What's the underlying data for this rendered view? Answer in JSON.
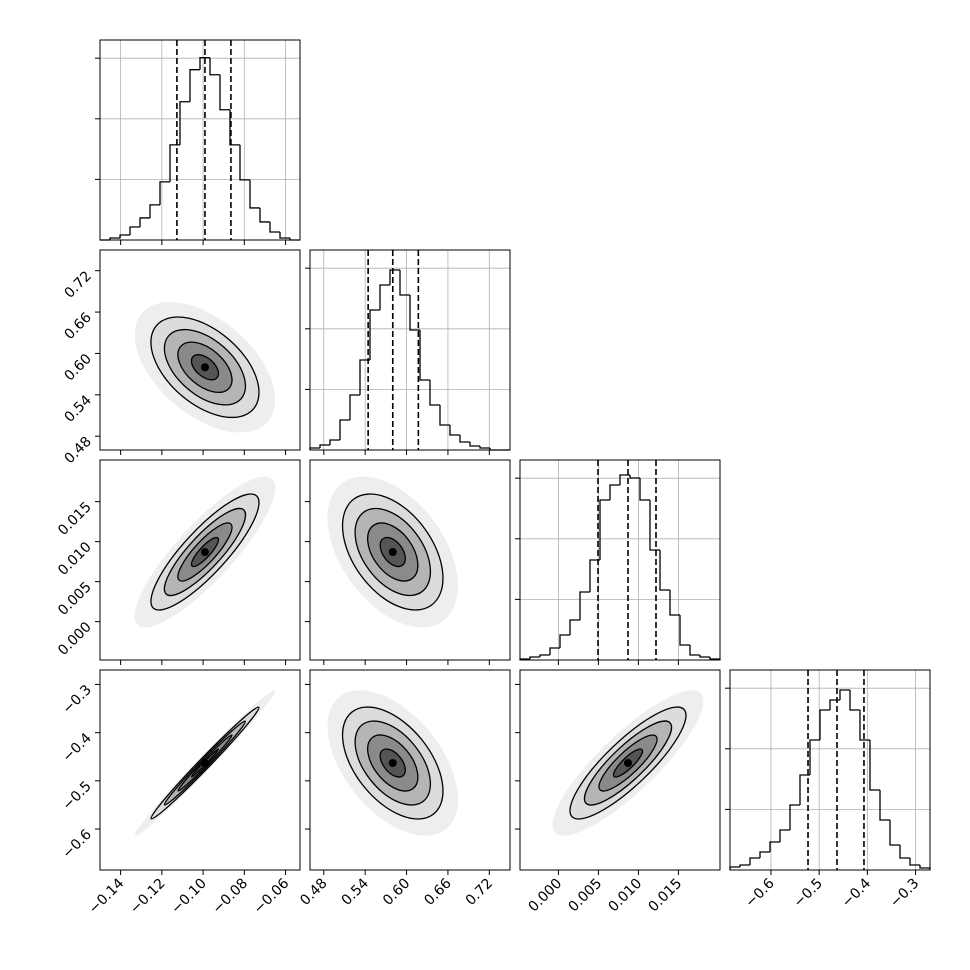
{
  "chart_data": [
    {
      "type": "histogram",
      "xlim": [
        -0.15,
        -0.053
      ],
      "xticks": [
        -0.14,
        -0.12,
        -0.1,
        -0.08,
        -0.06
      ],
      "ylim": [
        0,
        3300
      ],
      "yticks": [
        1000,
        2000,
        3000
      ],
      "grid": true,
      "bins": [
        -0.15,
        -0.14515,
        -0.1403,
        -0.13545,
        -0.1306,
        -0.12575,
        -0.1209,
        -0.11605,
        -0.1112,
        -0.10635,
        -0.1015,
        -0.09665,
        -0.0918,
        -0.08695,
        -0.0821,
        -0.07725,
        -0.0724,
        -0.06755,
        -0.0627,
        -0.05785,
        -0.053
      ],
      "values": [
        0,
        33,
        83,
        215,
        364,
        579,
        959,
        1570,
        2281,
        2810,
        3008,
        2727,
        2149,
        1570,
        992,
        529,
        298,
        132,
        33,
        0
      ],
      "vlines": [
        -0.1127,
        -0.0991,
        -0.0865
      ]
    },
    {
      "type": "contour",
      "xlim": [
        -0.15,
        -0.053
      ],
      "xticks": [
        -0.14,
        -0.12,
        -0.1,
        -0.08,
        -0.06
      ],
      "ylim": [
        0.46,
        0.75
      ],
      "yticks": [
        {
          "value": 0.48,
          "label": "0.48"
        },
        {
          "value": 0.54,
          "label": "0.54"
        },
        {
          "value": 0.6,
          "label": "0.60"
        },
        {
          "value": 0.66,
          "label": "0.66"
        },
        {
          "value": 0.72,
          "label": "0.72"
        }
      ],
      "grid": false,
      "correlation": -0.5
    },
    {
      "type": "histogram",
      "xlim": [
        0.46,
        0.75
      ],
      "xticks": [
        0.48,
        0.54,
        0.6,
        0.66,
        0.72
      ],
      "ylim": [
        0,
        3300
      ],
      "yticks": [
        1000,
        2000,
        3000
      ],
      "grid": true,
      "bins": [
        0.46,
        0.4745,
        0.489,
        0.5035,
        0.518,
        0.5325,
        0.547,
        0.5615,
        0.576,
        0.5905,
        0.605,
        0.6195,
        0.634,
        0.6485,
        0.663,
        0.6775,
        0.692,
        0.7065,
        0.721,
        0.7355,
        0.75
      ],
      "values": [
        33,
        83,
        165,
        495,
        908,
        1485,
        2310,
        2723,
        2970,
        2558,
        1980,
        1155,
        743,
        413,
        248,
        132,
        66,
        33,
        0,
        0
      ],
      "vlines": [
        0.5443,
        0.58,
        0.6171
      ]
    },
    {
      "type": "contour",
      "xlim": [
        -0.15,
        -0.053
      ],
      "xticks": [
        -0.14,
        -0.12,
        -0.1,
        -0.08,
        -0.06
      ],
      "ylim": [
        -0.0048,
        0.0202
      ],
      "yticks": [
        {
          "value": 0,
          "label": "0.000"
        },
        {
          "value": 0.005,
          "label": "0.005"
        },
        {
          "value": 0.01,
          "label": "0.010"
        },
        {
          "value": 0.015,
          "label": "0.015"
        }
      ],
      "grid": false,
      "correlation": 0.85
    },
    {
      "type": "contour",
      "xlim": [
        0.46,
        0.75
      ],
      "xticks": [
        0.48,
        0.54,
        0.6,
        0.66,
        0.72
      ],
      "ylim": [
        -0.0048,
        0.0202
      ],
      "yticks": [
        0,
        0.005,
        0.01,
        0.015
      ],
      "grid": false,
      "correlation": -0.45
    },
    {
      "type": "histogram",
      "xlim": [
        -0.0048,
        0.0202
      ],
      "xticks": [
        0,
        0.005,
        0.01,
        0.015
      ],
      "ylim": [
        0,
        3300
      ],
      "yticks": [
        1000,
        2000,
        3000
      ],
      "grid": true,
      "bins": [
        -0.0048,
        -0.00355,
        -0.0023,
        -0.00105,
        0.0002,
        0.00145,
        0.0027,
        0.00395,
        0.0052,
        0.00645,
        0.0077,
        0.00895,
        0.0102,
        0.01145,
        0.0127,
        0.01395,
        0.0152,
        0.01645,
        0.0177,
        0.01895,
        0.0202
      ],
      "values": [
        17,
        50,
        83,
        198,
        413,
        660,
        1122,
        1650,
        2640,
        2888,
        3053,
        3003,
        2640,
        1815,
        1155,
        743,
        248,
        83,
        50,
        17
      ],
      "vlines": [
        0.00495,
        0.0087,
        0.0122
      ]
    },
    {
      "type": "contour",
      "xlim": [
        -0.15,
        -0.053
      ],
      "xticks": [
        {
          "value": -0.14,
          "label": "−0.14"
        },
        {
          "value": -0.12,
          "label": "−0.12"
        },
        {
          "value": -0.1,
          "label": "−0.10"
        },
        {
          "value": -0.08,
          "label": "−0.08"
        },
        {
          "value": -0.06,
          "label": "−0.06"
        }
      ],
      "ylim": [
        -0.685,
        -0.27
      ],
      "yticks": [
        {
          "value": -0.6,
          "label": "−0.6"
        },
        {
          "value": -0.5,
          "label": "−0.5"
        },
        {
          "value": -0.4,
          "label": "−0.4"
        },
        {
          "value": -0.3,
          "label": "−0.3"
        }
      ],
      "grid": false,
      "correlation": 0.99
    },
    {
      "type": "contour",
      "xlim": [
        0.46,
        0.75
      ],
      "xticks": [
        {
          "value": 0.48,
          "label": "0.48"
        },
        {
          "value": 0.54,
          "label": "0.54"
        },
        {
          "value": 0.6,
          "label": "0.60"
        },
        {
          "value": 0.66,
          "label": "0.66"
        },
        {
          "value": 0.72,
          "label": "0.72"
        }
      ],
      "ylim": [
        -0.685,
        -0.27
      ],
      "yticks": [
        -0.6,
        -0.5,
        -0.4,
        -0.3
      ],
      "grid": false,
      "correlation": -0.5
    },
    {
      "type": "contour",
      "xlim": [
        -0.0048,
        0.0202
      ],
      "xticks": [
        {
          "value": 0,
          "label": "0.000"
        },
        {
          "value": 0.005,
          "label": "0.005"
        },
        {
          "value": 0.01,
          "label": "0.010"
        },
        {
          "value": 0.015,
          "label": "0.015"
        }
      ],
      "ylim": [
        -0.685,
        -0.27
      ],
      "yticks": [
        -0.6,
        -0.5,
        -0.4,
        -0.3
      ],
      "grid": false,
      "correlation": 0.85
    },
    {
      "type": "histogram",
      "xlim": [
        -0.685,
        -0.27
      ],
      "xticks": [
        {
          "value": -0.6,
          "label": "−0.6"
        },
        {
          "value": -0.5,
          "label": "−0.5"
        },
        {
          "value": -0.4,
          "label": "−0.4"
        },
        {
          "value": -0.3,
          "label": "−0.3"
        }
      ],
      "ylim": [
        0,
        3300
      ],
      "yticks": [
        1000,
        2000,
        3000
      ],
      "grid": true,
      "bins": [
        -0.685,
        -0.66425,
        -0.6435,
        -0.62275,
        -0.602,
        -0.58125,
        -0.5605,
        -0.53975,
        -0.519,
        -0.49825,
        -0.4775,
        -0.45675,
        -0.436,
        -0.41525,
        -0.3945,
        -0.37375,
        -0.353,
        -0.33225,
        -0.3115,
        -0.29075,
        -0.27
      ],
      "values": [
        50,
        83,
        198,
        297,
        462,
        660,
        1073,
        1568,
        2145,
        2640,
        2805,
        2970,
        2640,
        2145,
        1320,
        825,
        413,
        198,
        83,
        33
      ],
      "vlines": [
        -0.5231,
        -0.463,
        -0.407
      ]
    }
  ]
}
